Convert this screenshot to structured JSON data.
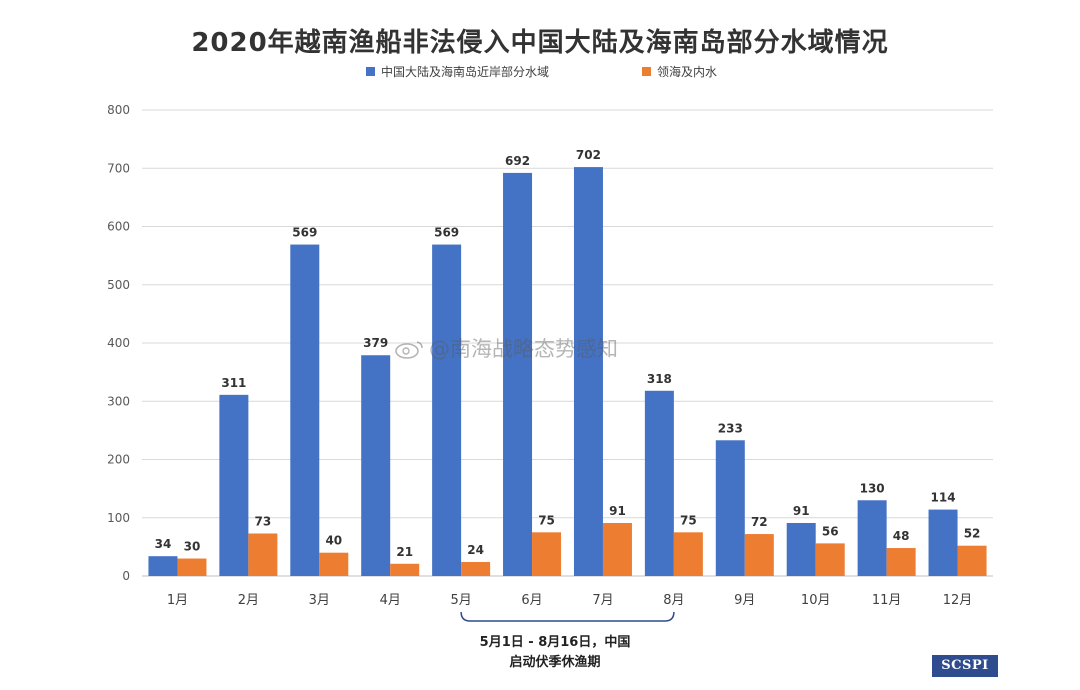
{
  "chart_data": {
    "type": "bar",
    "title": "2020年越南渔船非法侵入中国大陆及海南岛部分水域情况",
    "categories": [
      "1月",
      "2月",
      "3月",
      "4月",
      "5月",
      "6月",
      "7月",
      "8月",
      "9月",
      "10月",
      "11月",
      "12月"
    ],
    "series": [
      {
        "name": "中国大陆及海南岛近岸部分水域",
        "color": "#4472c4",
        "values": [
          34,
          311,
          569,
          379,
          569,
          692,
          702,
          318,
          233,
          91,
          130,
          114
        ]
      },
      {
        "name": "领海及内水",
        "color": "#ed7d31",
        "values": [
          30,
          73,
          40,
          21,
          24,
          75,
          91,
          75,
          72,
          56,
          48,
          52
        ]
      }
    ],
    "ylim": [
      0,
      800
    ],
    "yticks": [
      0,
      100,
      200,
      300,
      400,
      500,
      600,
      700,
      800
    ],
    "grid": true,
    "legend": "top-center",
    "annotation": {
      "range": [
        "5月",
        "8月"
      ],
      "lines": [
        "5月1日 - 8月16日，中国",
        "启动伏季休渔期"
      ]
    }
  },
  "watermark": "@南海战略态势感知",
  "brand": "SCSPI"
}
